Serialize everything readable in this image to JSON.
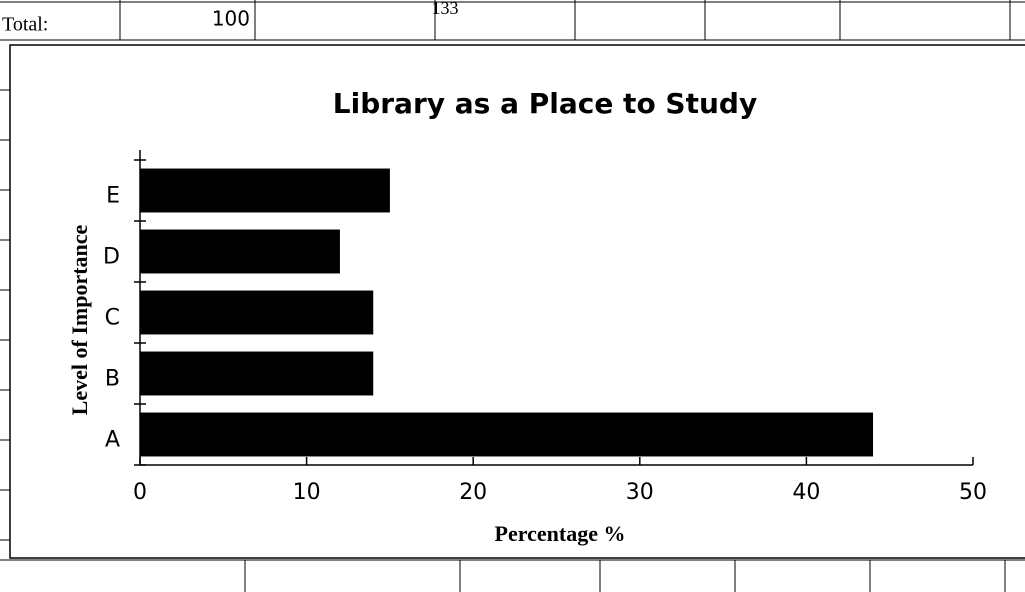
{
  "sheet_row": [
    "Total:",
    "100",
    "133"
  ],
  "chart_data": {
    "type": "hbar",
    "title": "Library as a Place to Study",
    "x_label": "Percentage %",
    "y_label": "Level of Importance",
    "categories": [
      "A",
      "B",
      "C",
      "D",
      "E"
    ],
    "values": [
      44,
      14,
      14,
      12,
      15
    ],
    "color": "#000000",
    "xlim": [
      0,
      50
    ],
    "xticks": [
      0,
      10,
      20,
      30,
      40,
      50
    ],
    "grid": false
  }
}
